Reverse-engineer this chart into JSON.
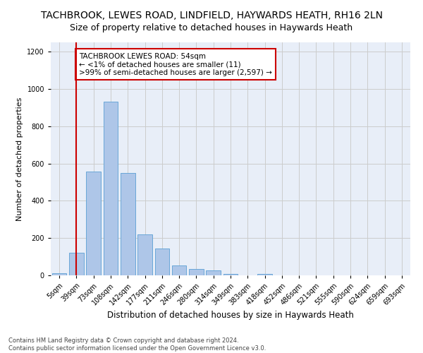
{
  "title": "TACHBROOK, LEWES ROAD, LINDFIELD, HAYWARDS HEATH, RH16 2LN",
  "subtitle": "Size of property relative to detached houses in Haywards Heath",
  "xlabel": "Distribution of detached houses by size in Haywards Heath",
  "ylabel": "Number of detached properties",
  "footer_line1": "Contains HM Land Registry data © Crown copyright and database right 2024.",
  "footer_line2": "Contains public sector information licensed under the Open Government Licence v3.0.",
  "categories": [
    "5sqm",
    "39sqm",
    "73sqm",
    "108sqm",
    "142sqm",
    "177sqm",
    "211sqm",
    "246sqm",
    "280sqm",
    "314sqm",
    "349sqm",
    "383sqm",
    "418sqm",
    "452sqm",
    "486sqm",
    "521sqm",
    "555sqm",
    "590sqm",
    "624sqm",
    "659sqm",
    "693sqm"
  ],
  "values": [
    10,
    120,
    555,
    930,
    548,
    220,
    145,
    52,
    33,
    27,
    8,
    0,
    8,
    0,
    0,
    0,
    0,
    0,
    0,
    0,
    0
  ],
  "bar_color": "#aec6e8",
  "bar_edge_color": "#5a9fd4",
  "grid_color": "#cccccc",
  "background_color": "#e8eef8",
  "vline_x": 1,
  "vline_color": "#cc0000",
  "annotation_text": "TACHBROOK LEWES ROAD: 54sqm\n← <1% of detached houses are smaller (11)\n>99% of semi-detached houses are larger (2,597) →",
  "annotation_box_color": "#ffffff",
  "annotation_box_edge": "#cc0000",
  "ylim": [
    0,
    1250
  ],
  "yticks": [
    0,
    200,
    400,
    600,
    800,
    1000,
    1200
  ],
  "title_fontsize": 10,
  "subtitle_fontsize": 9,
  "xlabel_fontsize": 8.5,
  "ylabel_fontsize": 8,
  "tick_fontsize": 7,
  "annotation_fontsize": 7.5,
  "footer_fontsize": 6
}
